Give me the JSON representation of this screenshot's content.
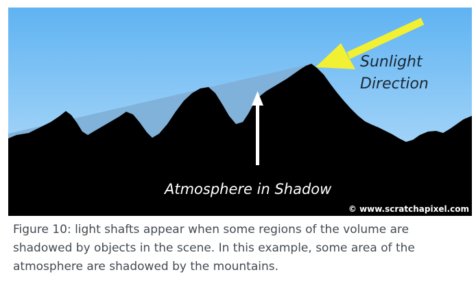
{
  "figure": {
    "sunlight_label_line1": "Sunlight",
    "sunlight_label_line2": "Direction",
    "shadow_label": "Atmosphere in Shadow",
    "credit": "© www.scratchapixel.com",
    "colors": {
      "sky_top": "#5fb3f2",
      "sky_bottom": "#bfe2fb",
      "shadow_region": "#7fb0d8",
      "mountains": "#000000",
      "sun_arrow": "#f2f032",
      "shadow_arrow": "#ffffff"
    }
  },
  "caption": {
    "text": "Figure 10: light shafts appear when some regions of the volume are shadowed by objects in the scene. In this example, some area of the atmosphere are shadowed by the mountains."
  }
}
